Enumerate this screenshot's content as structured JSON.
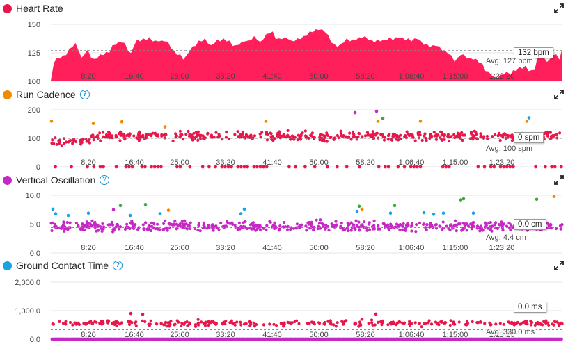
{
  "colors": {
    "hr_fill": "#ff1f5a",
    "cadence_dot": "#e8174b",
    "vo_dot": "#c42ac3",
    "gct_dot": "#e8174b",
    "gct_zero": "#c42ac3",
    "orange": "#f08a00",
    "blue": "#17a3e6",
    "green": "#3aa83a"
  },
  "x_ticks": [
    "8:20",
    "16:40",
    "25:00",
    "33:20",
    "41:40",
    "50:00",
    "58:20",
    "1:06:40",
    "1:15:00",
    "1:23:20"
  ],
  "chart_data": [
    {
      "type": "area",
      "title": "Heart Rate",
      "title_color": "#e8174b",
      "yticks": [
        "150",
        "125",
        "100"
      ],
      "ylim": [
        100,
        150
      ],
      "x_range_seconds": [
        0,
        5600
      ],
      "series": [
        {
          "values": [
            100,
            117,
            120,
            121,
            122,
            124,
            128,
            131,
            133,
            128,
            120,
            125,
            127,
            122,
            119,
            121,
            123,
            124,
            125,
            126,
            131,
            133,
            134,
            135,
            133,
            128,
            124,
            132,
            136,
            136,
            137,
            137,
            138,
            136,
            135,
            136,
            135,
            136,
            134,
            130,
            126,
            124,
            123,
            120,
            122,
            127,
            130,
            132,
            135,
            136,
            137,
            134,
            131,
            134,
            136,
            136,
            137,
            136,
            135,
            132,
            131,
            133,
            134,
            136,
            135,
            137,
            139,
            137,
            134,
            138,
            141,
            143,
            143,
            138,
            137,
            138,
            138,
            138,
            135,
            136,
            137,
            138,
            139,
            141,
            143,
            144,
            145,
            146,
            145,
            144,
            140,
            135,
            132,
            131,
            132,
            135,
            137,
            136,
            136,
            137,
            138,
            139,
            139,
            137,
            136,
            135,
            136,
            136,
            136,
            137,
            138,
            137,
            138,
            139,
            138,
            137,
            137,
            136,
            137,
            138,
            135,
            133,
            132,
            131,
            131,
            132,
            130,
            128,
            126,
            125,
            122,
            118,
            120,
            124,
            123,
            121,
            120,
            120,
            119,
            117,
            115,
            110,
            108,
            106,
            103,
            104,
            105,
            107,
            108,
            106,
            109,
            110,
            112,
            112,
            113,
            110,
            109,
            111,
            122,
            121,
            120,
            118,
            119,
            124,
            123,
            120,
            129
          ]
        }
      ],
      "readout": "132 bpm",
      "avg_label": "Avg: 127 bpm",
      "avg_value": 127
    },
    {
      "type": "scatter",
      "title": "Run Cadence",
      "title_color": "#f08a00",
      "yticks": [
        "200",
        "100",
        "0"
      ],
      "ylim": [
        0,
        200
      ],
      "readout": "0 spm",
      "avg_label": "Avg: 100 spm",
      "avg_value": 100
    },
    {
      "type": "scatter",
      "title": "Vertical Oscillation",
      "title_color": "#c42ac3",
      "yticks": [
        "10.0",
        "5.0",
        "0.0"
      ],
      "ylim": [
        0,
        10
      ],
      "readout": "0.0 cm",
      "avg_label": "Avg: 4.4 cm",
      "avg_value": 4.4
    },
    {
      "type": "scatter",
      "title": "Ground Contact Time",
      "title_color": "#17a3e6",
      "yticks": [
        "2,000.0",
        "1,000.0",
        "0.0"
      ],
      "ylim": [
        0,
        2000
      ],
      "readout": "0.0 ms",
      "avg_label": "Avg: 330.0 ms",
      "avg_value": 330
    }
  ]
}
